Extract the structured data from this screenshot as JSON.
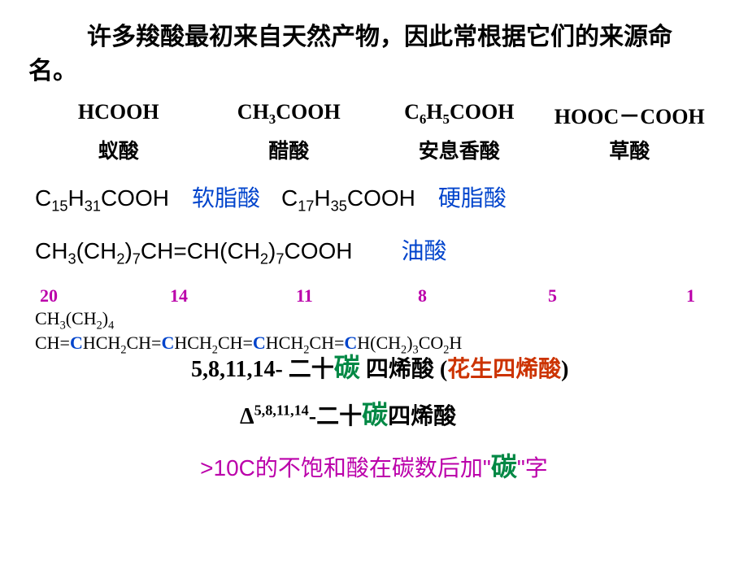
{
  "intro": "许多羧酸最初来自天然产物，因此常根据它们的来源命名。",
  "acids": {
    "formulas": [
      "HCOOH",
      "CH|3|COOH",
      "C|6|H|5|COOH",
      "HOOC－COOH"
    ],
    "names": [
      "蚁酸",
      "醋酸",
      "安息香酸",
      "草酸"
    ]
  },
  "fatty1": {
    "f1": "C|15|H|31|COOH",
    "n1": "软脂酸",
    "f2": "C|17|H|35|COOH",
    "n2": "硬脂酸"
  },
  "fatty2": {
    "f": "CH|3|(CH|2|)|7|CH=CH(CH|2|)|7|COOH",
    "n": "油酸"
  },
  "positions": [
    "20",
    "14",
    "11",
    "8",
    "5",
    "1"
  ],
  "long_formula_line1": "CH|3|(CH|2|)|4|",
  "long_formula_line2": [
    "CH=",
    "C",
    "HCH|2|CH=",
    "C",
    "HCH|2|CH=",
    "C",
    "HCH|2|CH=",
    "C",
    "H(CH|2|)|3|CO|2|H"
  ],
  "name_line1": {
    "prefix": "5,8,11,14- ",
    "twenty": "二十",
    "carbon": "碳",
    "suffix": " 四烯酸 (",
    "red": "花生四烯酸",
    "close": ")"
  },
  "name_line2": {
    "delta": "Δ",
    "sup": "5,8,11,14",
    "mid": "-二十",
    "carbon": "碳",
    "suffix": "四烯酸"
  },
  "rule": {
    "p1": ">10C的不饱和酸在碳数后加\"",
    "carbon": "碳",
    "p2": "\"字"
  },
  "colors": {
    "blue": "#0044cc",
    "magenta": "#bb00aa",
    "green": "#008844",
    "red": "#cc3300"
  }
}
